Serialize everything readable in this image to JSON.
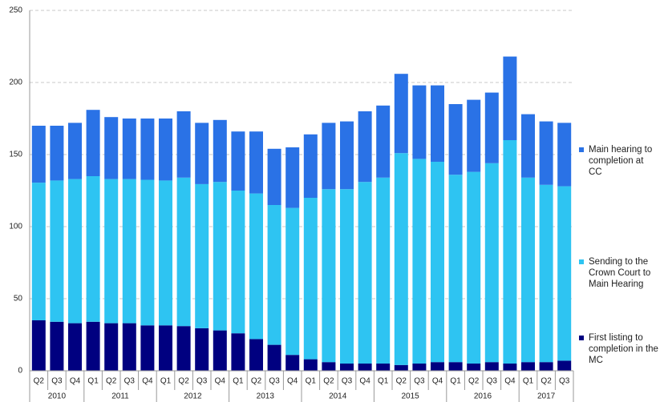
{
  "chart_data": {
    "type": "stacked_bar",
    "categories": [
      "Q2",
      "Q3",
      "Q4",
      "Q1",
      "Q2",
      "Q3",
      "Q4",
      "Q1",
      "Q2",
      "Q3",
      "Q4",
      "Q1",
      "Q2",
      "Q3",
      "Q4",
      "Q1",
      "Q2",
      "Q3",
      "Q4",
      "Q1",
      "Q2",
      "Q3",
      "Q4",
      "Q1",
      "Q2",
      "Q3",
      "Q4",
      "Q1",
      "Q2",
      "Q3"
    ],
    "years": [
      "2010",
      null,
      null,
      "2011",
      null,
      null,
      null,
      "2012",
      null,
      null,
      null,
      "2013",
      null,
      null,
      null,
      "2014",
      null,
      null,
      null,
      "2015",
      null,
      null,
      null,
      "2016",
      null,
      null,
      null,
      "2017",
      null,
      null
    ],
    "series": [
      {
        "name": "First listing to completion in the MC",
        "color": "#000080",
        "values": [
          35,
          34,
          33,
          34,
          33,
          33,
          31.5,
          31.5,
          31,
          29.5,
          28,
          26,
          22,
          18,
          11,
          8,
          6,
          5,
          5,
          5,
          4,
          5,
          6,
          6,
          5,
          6,
          5,
          6,
          6,
          7
        ]
      },
      {
        "name": "Sending to the Crown Court to Main Hearing",
        "color": "#2ec4f2",
        "values": [
          95.5,
          98,
          100,
          101,
          100,
          100,
          101,
          100.5,
          103,
          100,
          103,
          99,
          101,
          97,
          102,
          112,
          120,
          121,
          126,
          129,
          147,
          142,
          139,
          130,
          133,
          138,
          155,
          128,
          123,
          121
        ]
      },
      {
        "name": "Main hearing to completion at CC",
        "color": "#2a72e6",
        "values": [
          39.5,
          38,
          39,
          46,
          43,
          42,
          42.5,
          43,
          46,
          42.5,
          43,
          41,
          43,
          39,
          42,
          44,
          46,
          47,
          49,
          50,
          55,
          51,
          53,
          49,
          50,
          49,
          58,
          44,
          44,
          44
        ]
      }
    ],
    "ylim": [
      0,
      250
    ],
    "yticks": [
      0,
      50,
      100,
      150,
      200,
      250
    ],
    "grid": true
  }
}
